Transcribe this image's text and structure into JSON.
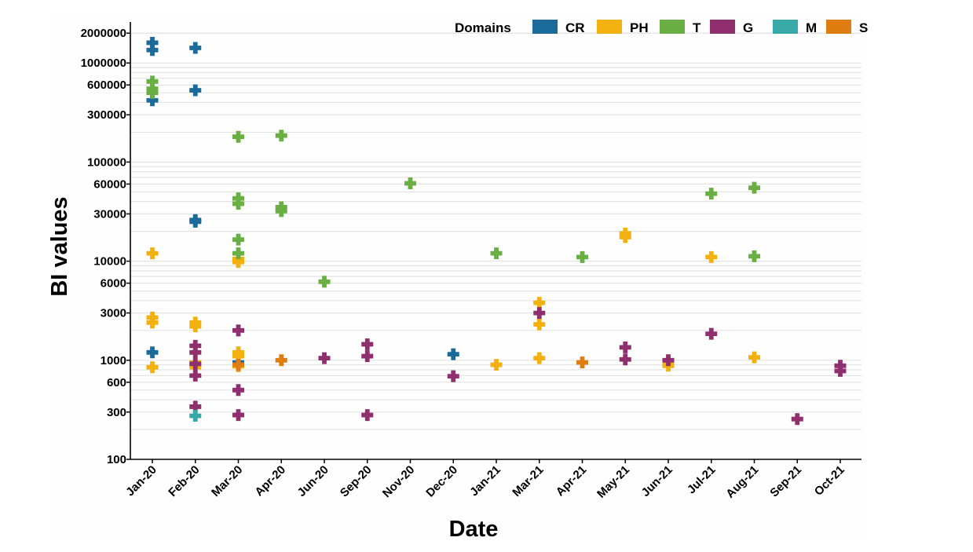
{
  "chart_data": {
    "type": "scatter",
    "xlabel": "Date",
    "ylabel": "BI values",
    "x_scale": "categorical",
    "y_scale": "log",
    "ylim": [
      100,
      2500000
    ],
    "yticks": [
      100,
      300,
      600,
      1000,
      3000,
      6000,
      10000,
      30000,
      60000,
      100000,
      300000,
      600000,
      1000000,
      2000000
    ],
    "ytick_labels": [
      "100",
      "300",
      "600",
      "1000",
      "3000",
      "6000",
      "10000",
      "30000",
      "60000",
      "100000",
      "300000",
      "600000",
      "1000000",
      "2000000"
    ],
    "categories": [
      "Jan-20",
      "Feb-20",
      "Mar-20",
      "Apr-20",
      "Jun-20",
      "Sep-20",
      "Nov-20",
      "Dec-20",
      "Jan-21",
      "Mar-21",
      "Apr-21",
      "May-21",
      "Jun-21",
      "Jul-21",
      "Aug-21",
      "Sep-21",
      "Oct-21"
    ],
    "grid": "horizontal",
    "marker": "plus",
    "legend": {
      "title": "Domains",
      "position": "top-right"
    },
    "series": [
      {
        "name": "CR",
        "color": "#1b6b9a",
        "points": [
          [
            "Jan-20",
            1600000
          ],
          [
            "Jan-20",
            1350000
          ],
          [
            "Jan-20",
            520000
          ],
          [
            "Jan-20",
            420000
          ],
          [
            "Feb-20",
            1420000
          ],
          [
            "Feb-20",
            530000
          ],
          [
            "Feb-20",
            25000
          ],
          [
            "Feb-20",
            26000
          ],
          [
            "Jan-20",
            1200
          ],
          [
            "Mar-20",
            950
          ],
          [
            "Dec-20",
            1150
          ]
        ]
      },
      {
        "name": "PH",
        "color": "#f2b10e",
        "points": [
          [
            "Jan-20",
            12000
          ],
          [
            "Jan-20",
            2700
          ],
          [
            "Jan-20",
            2400
          ],
          [
            "Jan-20",
            850
          ],
          [
            "Feb-20",
            2400
          ],
          [
            "Feb-20",
            2200
          ],
          [
            "Feb-20",
            950
          ],
          [
            "Feb-20",
            850
          ],
          [
            "Mar-20",
            10500
          ],
          [
            "Mar-20",
            9800
          ],
          [
            "Mar-20",
            1200
          ],
          [
            "Mar-20",
            1100
          ],
          [
            "Mar-20",
            870
          ],
          [
            "Jan-21",
            900
          ],
          [
            "Mar-21",
            3800
          ],
          [
            "Mar-21",
            2300
          ],
          [
            "Mar-21",
            1050
          ],
          [
            "May-21",
            19000
          ],
          [
            "May-21",
            17500
          ],
          [
            "Jun-21",
            950
          ],
          [
            "Jun-21",
            880
          ],
          [
            "Jul-21",
            11000
          ],
          [
            "Aug-21",
            1070
          ]
        ]
      },
      {
        "name": "T",
        "color": "#6aaf44",
        "points": [
          [
            "Jan-20",
            650000
          ],
          [
            "Jan-20",
            550000
          ],
          [
            "Jan-20",
            500000
          ],
          [
            "Mar-20",
            180000
          ],
          [
            "Mar-20",
            43000
          ],
          [
            "Mar-20",
            38000
          ],
          [
            "Mar-20",
            16500
          ],
          [
            "Mar-20",
            12000
          ],
          [
            "Apr-20",
            185000
          ],
          [
            "Apr-20",
            35000
          ],
          [
            "Apr-20",
            32000
          ],
          [
            "Jun-20",
            6200
          ],
          [
            "Nov-20",
            61000
          ],
          [
            "Jan-21",
            12000
          ],
          [
            "Apr-21",
            11000
          ],
          [
            "Jul-21",
            48000
          ],
          [
            "Aug-21",
            55000
          ],
          [
            "Aug-21",
            11200
          ]
        ]
      },
      {
        "name": "G",
        "color": "#8f2f6e",
        "points": [
          [
            "Feb-20",
            1400
          ],
          [
            "Feb-20",
            1200
          ],
          [
            "Feb-20",
            920
          ],
          [
            "Feb-20",
            700
          ],
          [
            "Feb-20",
            340
          ],
          [
            "Mar-20",
            2000
          ],
          [
            "Mar-20",
            900
          ],
          [
            "Mar-20",
            500
          ],
          [
            "Mar-20",
            280
          ],
          [
            "Jun-20",
            1050
          ],
          [
            "Sep-20",
            1450
          ],
          [
            "Sep-20",
            1100
          ],
          [
            "Sep-20",
            280
          ],
          [
            "Dec-20",
            690
          ],
          [
            "Mar-21",
            3000
          ],
          [
            "May-21",
            1350
          ],
          [
            "May-21",
            1020
          ],
          [
            "Jun-21",
            1000
          ],
          [
            "Jul-21",
            1850
          ],
          [
            "Sep-21",
            255
          ],
          [
            "Oct-21",
            880
          ],
          [
            "Oct-21",
            780
          ]
        ]
      },
      {
        "name": "M",
        "color": "#36a9a8",
        "points": [
          [
            "Feb-20",
            275
          ]
        ]
      },
      {
        "name": "S",
        "color": "#e07d10",
        "points": [
          [
            "Mar-20",
            900
          ],
          [
            "Apr-20",
            1000
          ],
          [
            "Apr-21",
            950
          ]
        ]
      }
    ]
  }
}
